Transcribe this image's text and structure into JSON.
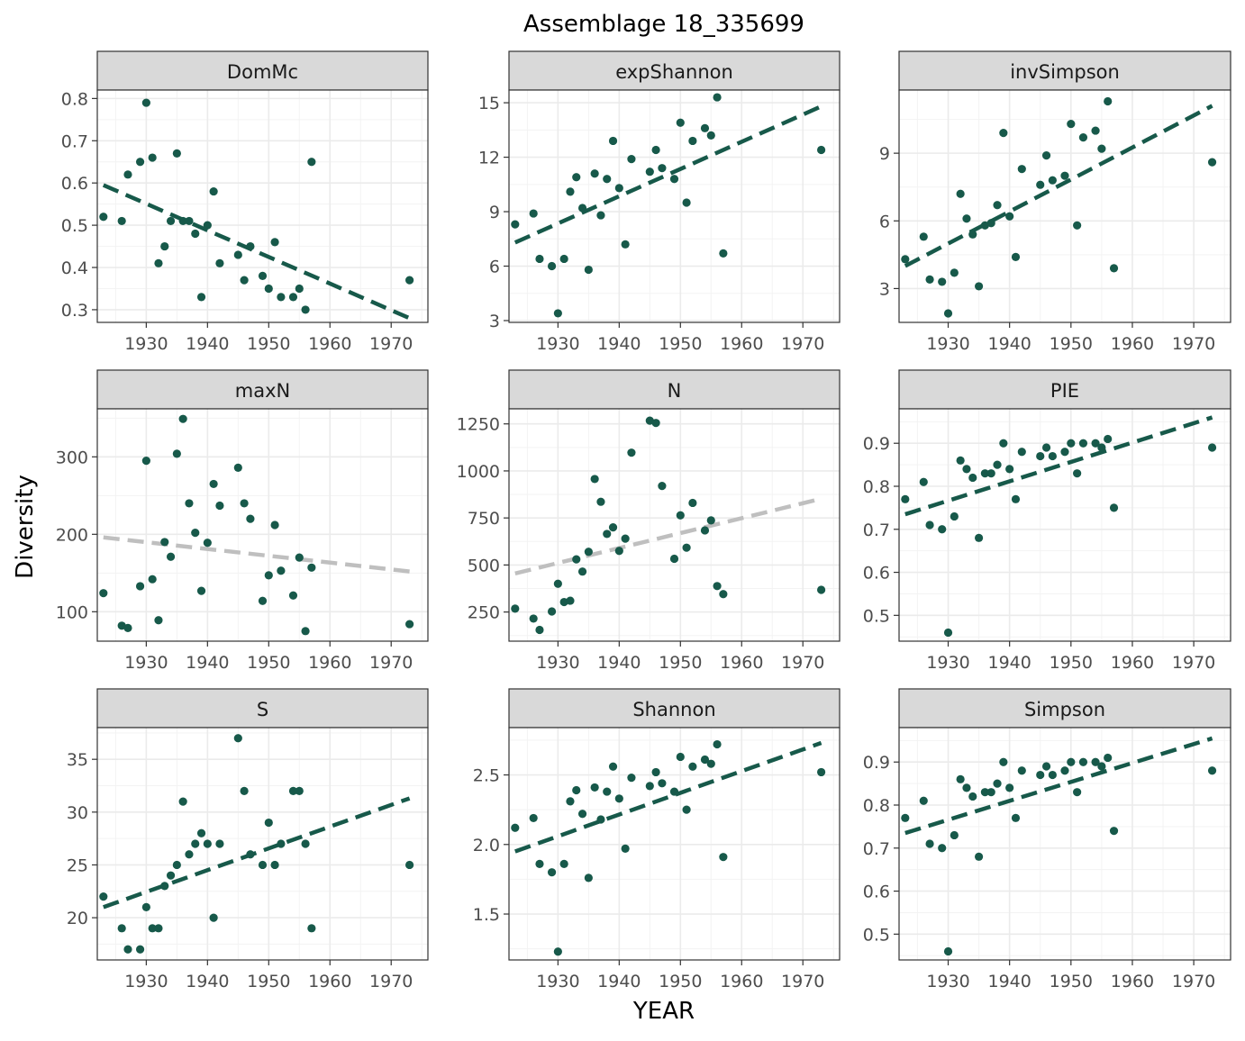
{
  "title": "Assemblage 18_335699",
  "xlabel": "YEAR",
  "ylabel": "Diversity",
  "colors": {
    "point": "#17594a",
    "trend_significant": "#17594a",
    "trend_nonsignificant": "#bfbfbf",
    "strip": "#d9d9d9",
    "grid": "#ebebeb"
  },
  "years": [
    1923,
    1926,
    1927,
    1929,
    1930,
    1931,
    1932,
    1933,
    1934,
    1935,
    1936,
    1937,
    1938,
    1939,
    1940,
    1941,
    1942,
    1945,
    1946,
    1947,
    1949,
    1950,
    1951,
    1952,
    1954,
    1955,
    1956,
    1957,
    1973
  ],
  "chart_data": [
    {
      "type": "scatter",
      "facet": "DomMc",
      "xlim": [
        1922,
        1976
      ],
      "ylim": [
        0.27,
        0.82
      ],
      "xticks": [
        1930,
        1940,
        1950,
        1960,
        1970
      ],
      "xtick_labels": [
        "1930",
        "1940",
        "1950",
        "1960",
        "1970"
      ],
      "yticks": [
        0.3,
        0.4,
        0.5,
        0.6,
        0.7,
        0.8
      ],
      "ytick_labels": [
        "0.3",
        "0.4",
        "0.5",
        "0.6",
        "0.7",
        "0.8"
      ],
      "x": [
        1923,
        1926,
        1927,
        1929,
        1930,
        1931,
        1932,
        1933,
        1934,
        1935,
        1936,
        1937,
        1938,
        1939,
        1940,
        1941,
        1942,
        1945,
        1946,
        1947,
        1949,
        1950,
        1951,
        1952,
        1954,
        1955,
        1956,
        1957,
        1973
      ],
      "y": [
        0.52,
        0.51,
        0.62,
        0.65,
        0.79,
        0.66,
        0.41,
        0.45,
        0.51,
        0.67,
        0.51,
        0.51,
        0.48,
        0.33,
        0.5,
        0.58,
        0.41,
        0.43,
        0.37,
        0.45,
        0.38,
        0.35,
        0.46,
        0.33,
        0.33,
        0.35,
        0.3,
        0.65,
        0.37
      ],
      "trend": {
        "x": [
          1923,
          1973
        ],
        "y": [
          0.595,
          0.28
        ],
        "significant": true
      }
    },
    {
      "type": "scatter",
      "facet": "expShannon",
      "xlim": [
        1922,
        1976
      ],
      "ylim": [
        2.9,
        15.7
      ],
      "xticks": [
        1930,
        1940,
        1950,
        1960,
        1970
      ],
      "xtick_labels": [
        "1930",
        "1940",
        "1950",
        "1960",
        "1970"
      ],
      "yticks": [
        3,
        6,
        9,
        12,
        15
      ],
      "ytick_labels": [
        "3",
        "6",
        "9",
        "12",
        "15"
      ],
      "x": [
        1923,
        1926,
        1927,
        1929,
        1930,
        1931,
        1932,
        1933,
        1934,
        1935,
        1936,
        1937,
        1938,
        1939,
        1940,
        1941,
        1942,
        1945,
        1946,
        1947,
        1949,
        1950,
        1951,
        1952,
        1954,
        1955,
        1956,
        1957,
        1973
      ],
      "y": [
        8.3,
        8.9,
        6.4,
        6.0,
        3.4,
        6.4,
        10.1,
        10.9,
        9.2,
        5.8,
        11.1,
        8.8,
        10.8,
        12.9,
        10.3,
        7.2,
        11.9,
        11.2,
        12.4,
        11.4,
        10.8,
        13.9,
        9.5,
        12.9,
        13.6,
        13.2,
        15.3,
        6.7,
        12.4
      ],
      "trend": {
        "x": [
          1923,
          1973
        ],
        "y": [
          7.3,
          14.8
        ],
        "significant": true
      }
    },
    {
      "type": "scatter",
      "facet": "invSimpson",
      "xlim": [
        1922,
        1976
      ],
      "ylim": [
        1.5,
        11.8
      ],
      "xticks": [
        1930,
        1940,
        1950,
        1960,
        1970
      ],
      "xtick_labels": [
        "1930",
        "1940",
        "1950",
        "1960",
        "1970"
      ],
      "yticks": [
        3,
        6,
        9
      ],
      "ytick_labels": [
        "3",
        "6",
        "9"
      ],
      "x": [
        1923,
        1926,
        1927,
        1929,
        1930,
        1931,
        1932,
        1933,
        1934,
        1935,
        1936,
        1937,
        1938,
        1939,
        1940,
        1941,
        1942,
        1945,
        1946,
        1947,
        1949,
        1950,
        1951,
        1952,
        1954,
        1955,
        1956,
        1957,
        1973
      ],
      "y": [
        4.3,
        5.3,
        3.4,
        3.3,
        1.9,
        3.7,
        7.2,
        6.1,
        5.4,
        3.1,
        5.8,
        5.9,
        6.7,
        9.9,
        6.2,
        4.4,
        8.3,
        7.6,
        8.9,
        7.8,
        8.0,
        10.3,
        5.8,
        9.7,
        10.0,
        9.2,
        11.3,
        3.9,
        8.6
      ],
      "trend": {
        "x": [
          1923,
          1973
        ],
        "y": [
          4.0,
          11.1
        ],
        "significant": true
      }
    },
    {
      "type": "scatter",
      "facet": "maxN",
      "xlim": [
        1922,
        1976
      ],
      "ylim": [
        62,
        362
      ],
      "xticks": [
        1930,
        1940,
        1950,
        1960,
        1970
      ],
      "xtick_labels": [
        "1930",
        "1940",
        "1950",
        "1960",
        "1970"
      ],
      "yticks": [
        100,
        200,
        300
      ],
      "ytick_labels": [
        "100",
        "200",
        "300"
      ],
      "x": [
        1923,
        1926,
        1927,
        1929,
        1930,
        1931,
        1932,
        1933,
        1934,
        1935,
        1936,
        1937,
        1938,
        1939,
        1940,
        1941,
        1942,
        1945,
        1946,
        1947,
        1949,
        1950,
        1951,
        1952,
        1954,
        1955,
        1956,
        1957,
        1973
      ],
      "y": [
        124,
        82,
        79,
        133,
        295,
        142,
        89,
        190,
        171,
        304,
        349,
        240,
        202,
        127,
        189,
        265,
        237,
        286,
        240,
        220,
        114,
        147,
        212,
        153,
        121,
        170,
        75,
        157,
        84
      ],
      "trend": {
        "x": [
          1923,
          1973
        ],
        "y": [
          196,
          152
        ],
        "significant": false
      }
    },
    {
      "type": "scatter",
      "facet": "N",
      "xlim": [
        1922,
        1976
      ],
      "ylim": [
        95,
        1330
      ],
      "xticks": [
        1930,
        1940,
        1950,
        1960,
        1970
      ],
      "xtick_labels": [
        "1930",
        "1940",
        "1950",
        "1960",
        "1970"
      ],
      "yticks": [
        250,
        500,
        750,
        1000,
        1250
      ],
      "ytick_labels": [
        "250",
        "500",
        "750",
        "1000",
        "1250"
      ],
      "x": [
        1923,
        1926,
        1927,
        1929,
        1930,
        1931,
        1932,
        1933,
        1934,
        1935,
        1936,
        1937,
        1938,
        1939,
        1940,
        1941,
        1942,
        1945,
        1946,
        1947,
        1949,
        1950,
        1951,
        1952,
        1954,
        1955,
        1956,
        1957,
        1973
      ],
      "y": [
        268,
        215,
        155,
        253,
        400,
        303,
        310,
        530,
        465,
        570,
        957,
        836,
        665,
        700,
        575,
        640,
        1097,
        1267,
        1255,
        920,
        533,
        764,
        592,
        830,
        684,
        737,
        388,
        345,
        368
      ],
      "trend": {
        "x": [
          1923,
          1973
        ],
        "y": [
          455,
          852
        ],
        "significant": false
      }
    },
    {
      "type": "scatter",
      "facet": "PIE",
      "xlim": [
        1922,
        1976
      ],
      "ylim": [
        0.44,
        0.98
      ],
      "xticks": [
        1930,
        1940,
        1950,
        1960,
        1970
      ],
      "xtick_labels": [
        "1930",
        "1940",
        "1950",
        "1960",
        "1970"
      ],
      "yticks": [
        0.5,
        0.6,
        0.7,
        0.8,
        0.9
      ],
      "ytick_labels": [
        "0.5",
        "0.6",
        "0.7",
        "0.8",
        "0.9"
      ],
      "x": [
        1923,
        1926,
        1927,
        1929,
        1930,
        1931,
        1932,
        1933,
        1934,
        1935,
        1936,
        1937,
        1938,
        1939,
        1940,
        1941,
        1942,
        1945,
        1946,
        1947,
        1949,
        1950,
        1951,
        1952,
        1954,
        1955,
        1956,
        1957,
        1973
      ],
      "y": [
        0.77,
        0.81,
        0.71,
        0.7,
        0.46,
        0.73,
        0.86,
        0.84,
        0.82,
        0.68,
        0.83,
        0.83,
        0.85,
        0.9,
        0.84,
        0.77,
        0.88,
        0.87,
        0.89,
        0.87,
        0.88,
        0.9,
        0.83,
        0.9,
        0.9,
        0.89,
        0.91,
        0.75,
        0.89
      ],
      "trend": {
        "x": [
          1923,
          1973
        ],
        "y": [
          0.735,
          0.96
        ],
        "significant": true
      }
    },
    {
      "type": "scatter",
      "facet": "S",
      "xlim": [
        1922,
        1976
      ],
      "ylim": [
        16,
        38
      ],
      "xticks": [
        1930,
        1940,
        1950,
        1960,
        1970
      ],
      "xtick_labels": [
        "1930",
        "1940",
        "1950",
        "1960",
        "1970"
      ],
      "yticks": [
        20,
        25,
        30,
        35
      ],
      "ytick_labels": [
        "20",
        "25",
        "30",
        "35"
      ],
      "x": [
        1923,
        1926,
        1927,
        1929,
        1930,
        1931,
        1932,
        1933,
        1934,
        1935,
        1936,
        1937,
        1938,
        1939,
        1940,
        1941,
        1942,
        1945,
        1946,
        1947,
        1949,
        1950,
        1951,
        1952,
        1954,
        1955,
        1956,
        1957,
        1973
      ],
      "y": [
        22,
        19,
        17,
        17,
        21,
        19,
        19,
        23,
        24,
        25,
        31,
        26,
        27,
        28,
        27,
        20,
        27,
        37,
        32,
        26,
        25,
        29,
        25,
        27,
        32,
        32,
        27,
        19,
        25
      ],
      "trend": {
        "x": [
          1923,
          1973
        ],
        "y": [
          21.0,
          31.3
        ],
        "significant": true
      }
    },
    {
      "type": "scatter",
      "facet": "Shannon",
      "xlim": [
        1922,
        1976
      ],
      "ylim": [
        1.17,
        2.84
      ],
      "xticks": [
        1930,
        1940,
        1950,
        1960,
        1970
      ],
      "xtick_labels": [
        "1930",
        "1940",
        "1950",
        "1960",
        "1970"
      ],
      "yticks": [
        1.5,
        2.0,
        2.5
      ],
      "ytick_labels": [
        "1.5",
        "2.0",
        "2.5"
      ],
      "x": [
        1923,
        1926,
        1927,
        1929,
        1930,
        1931,
        1932,
        1933,
        1934,
        1935,
        1936,
        1937,
        1938,
        1939,
        1940,
        1941,
        1942,
        1945,
        1946,
        1947,
        1949,
        1950,
        1951,
        1952,
        1954,
        1955,
        1956,
        1957,
        1973
      ],
      "y": [
        2.12,
        2.19,
        1.86,
        1.8,
        1.23,
        1.86,
        2.31,
        2.39,
        2.22,
        1.76,
        2.41,
        2.18,
        2.38,
        2.56,
        2.33,
        1.97,
        2.48,
        2.42,
        2.52,
        2.44,
        2.38,
        2.63,
        2.25,
        2.56,
        2.61,
        2.58,
        2.72,
        1.91,
        2.52
      ],
      "trend": {
        "x": [
          1923,
          1973
        ],
        "y": [
          1.95,
          2.73
        ],
        "significant": true
      }
    },
    {
      "type": "scatter",
      "facet": "Simpson",
      "xlim": [
        1922,
        1976
      ],
      "ylim": [
        0.44,
        0.98
      ],
      "xticks": [
        1930,
        1940,
        1950,
        1960,
        1970
      ],
      "xtick_labels": [
        "1930",
        "1940",
        "1950",
        "1960",
        "1970"
      ],
      "yticks": [
        0.5,
        0.6,
        0.7,
        0.8,
        0.9
      ],
      "ytick_labels": [
        "0.5",
        "0.6",
        "0.7",
        "0.8",
        "0.9"
      ],
      "x": [
        1923,
        1926,
        1927,
        1929,
        1930,
        1931,
        1932,
        1933,
        1934,
        1935,
        1936,
        1937,
        1938,
        1939,
        1940,
        1941,
        1942,
        1945,
        1946,
        1947,
        1949,
        1950,
        1951,
        1952,
        1954,
        1955,
        1956,
        1957,
        1973
      ],
      "y": [
        0.77,
        0.81,
        0.71,
        0.7,
        0.46,
        0.73,
        0.86,
        0.84,
        0.82,
        0.68,
        0.83,
        0.83,
        0.85,
        0.9,
        0.84,
        0.77,
        0.88,
        0.87,
        0.89,
        0.87,
        0.88,
        0.9,
        0.83,
        0.9,
        0.9,
        0.89,
        0.91,
        0.74,
        0.88
      ],
      "trend": {
        "x": [
          1923,
          1973
        ],
        "y": [
          0.735,
          0.955
        ],
        "significant": true
      }
    }
  ]
}
